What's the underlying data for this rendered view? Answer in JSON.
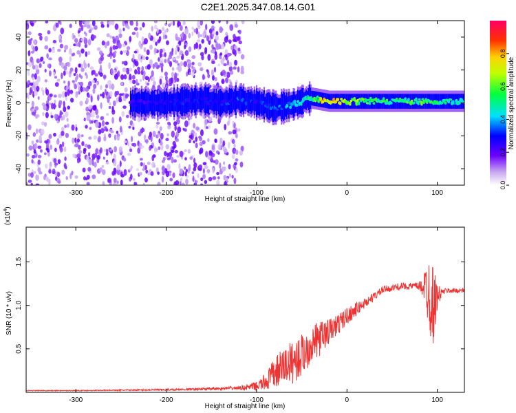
{
  "title": "C2E1.2025.347.08.14.G01",
  "chart_data": [
    {
      "type": "heatmap",
      "xlabel": "Height of straight line (km)",
      "ylabel": "Frequency (Hz)",
      "xlim": [
        -355,
        130
      ],
      "ylim": [
        -50,
        50
      ],
      "xticks": [
        -300,
        -200,
        -100,
        0,
        100
      ],
      "yticks": [
        -40,
        -20,
        0,
        20,
        40
      ],
      "colorbar": {
        "label": "Normalized spectral amplitude",
        "range": [
          0,
          1
        ],
        "ticks": [
          "0.0",
          "0.2",
          "0.4",
          "0.6",
          "0.8"
        ]
      },
      "regions": [
        {
          "name": "scattered noise",
          "x_range": [
            -355,
            -115
          ],
          "y_range": [
            -50,
            50
          ],
          "amplitude": 0.1
        },
        {
          "name": "signal trace",
          "x_range": [
            -240,
            130
          ],
          "center_y_hz": 0,
          "amplitude_range": [
            0.2,
            1.0
          ]
        }
      ],
      "signal_trace": {
        "x": [
          -240,
          -200,
          -160,
          -140,
          -120,
          -100,
          -80,
          -60,
          -40,
          -20,
          0,
          20,
          40,
          60,
          80,
          100,
          130
        ],
        "center_y": [
          0,
          0,
          2,
          0,
          2,
          0,
          -3,
          -1,
          3,
          1,
          1,
          1,
          1,
          1,
          1,
          1,
          1
        ],
        "amplitude": [
          0.25,
          0.3,
          0.3,
          0.3,
          0.35,
          0.3,
          0.35,
          0.4,
          0.55,
          0.85,
          0.7,
          0.6,
          0.55,
          0.55,
          0.6,
          0.55,
          0.45
        ]
      }
    },
    {
      "type": "line",
      "xlabel": "Height of straight line (km)",
      "ylabel": "SNR (10 * v/v)",
      "multiplier_label": "(x10",
      "multiplier_exp": "4",
      "multiplier_close": ")",
      "xlim": [
        -355,
        130
      ],
      "ylim": [
        0,
        1.9
      ],
      "xticks": [
        -300,
        -200,
        -100,
        0,
        100
      ],
      "yticks": [
        0.5,
        1.0,
        1.5
      ],
      "ytick_labels": [
        "0.5",
        "1.0",
        "1.5"
      ],
      "series": [
        {
          "color": "#ee3333",
          "x": [
            -355,
            -300,
            -200,
            -150,
            -120,
            -100,
            -90,
            -80,
            -70,
            -60,
            -50,
            -40,
            -30,
            -20,
            -10,
            0,
            10,
            20,
            30,
            40,
            50,
            60,
            70,
            80,
            85,
            90,
            95,
            100,
            105,
            110,
            120,
            130
          ],
          "y": [
            0.02,
            0.02,
            0.03,
            0.04,
            0.05,
            0.07,
            0.12,
            0.22,
            0.3,
            0.35,
            0.42,
            0.55,
            0.62,
            0.7,
            0.78,
            0.88,
            0.95,
            1.03,
            1.1,
            1.18,
            1.2,
            1.22,
            1.22,
            1.22,
            1.22,
            1.2,
            1.0,
            1.1,
            1.15,
            1.17,
            1.17,
            1.17
          ],
          "noise": [
            0.005,
            0.005,
            0.01,
            0.015,
            0.02,
            0.05,
            0.1,
            0.18,
            0.22,
            0.25,
            0.25,
            0.22,
            0.2,
            0.15,
            0.12,
            0.1,
            0.08,
            0.06,
            0.05,
            0.04,
            0.04,
            0.04,
            0.04,
            0.05,
            0.15,
            0.45,
            0.5,
            0.15,
            0.04,
            0.03,
            0.03,
            0.03
          ]
        }
      ]
    }
  ]
}
